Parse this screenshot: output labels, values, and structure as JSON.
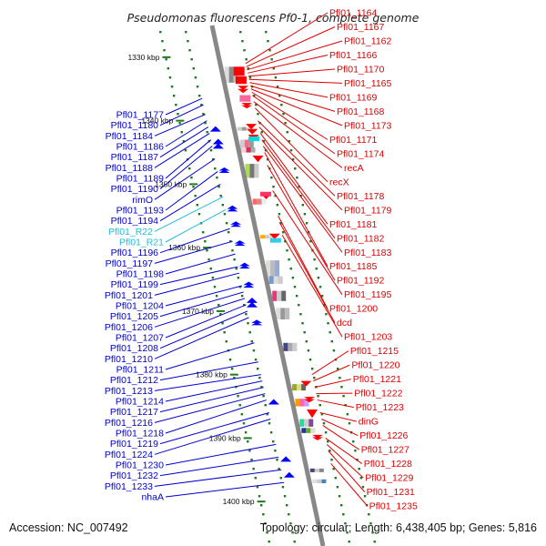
{
  "title": "Pseudomonas fluorescens Pf0-1, complete genome",
  "accession": "Accession: NC_007492",
  "topology": "Topology: circular; Length: 6,438,405 bp; Genes: 5,816",
  "colors": {
    "left_label": "#0000cc",
    "right_label": "#dd0000",
    "rna_label": "#22bbdd",
    "backbone": "#888888",
    "tick": "#1a7a1a"
  },
  "scale_marks": [
    {
      "label": "1330 kbp",
      "kbp": 1330
    },
    {
      "label": "1340 kbp",
      "kbp": 1340
    },
    {
      "label": "1350 kbp",
      "kbp": 1350
    },
    {
      "label": "1360 kbp",
      "kbp": 1360
    },
    {
      "label": "1370 kbp",
      "kbp": 1370
    },
    {
      "label": "1380 kbp",
      "kbp": 1380
    },
    {
      "label": "1390 kbp",
      "kbp": 1390
    },
    {
      "label": "1400 kbp",
      "kbp": 1400
    }
  ],
  "left_labels": [
    {
      "name": "Pfl01_1177",
      "kbp": 1336.5
    },
    {
      "name": "Pfl01_1180",
      "kbp": 1337.5
    },
    {
      "name": "Pfl01_1184",
      "kbp": 1339
    },
    {
      "name": "Pfl01_1186",
      "kbp": 1340
    },
    {
      "name": "Pfl01_1187",
      "kbp": 1341
    },
    {
      "name": "Pfl01_1188",
      "kbp": 1342
    },
    {
      "name": "Pfl01_1189",
      "kbp": 1343
    },
    {
      "name": "Pfl01_1190",
      "kbp": 1344
    },
    {
      "name": "rimO",
      "kbp": 1346
    },
    {
      "name": "Pfl01_1193",
      "kbp": 1348
    },
    {
      "name": "Pfl01_1194",
      "kbp": 1350
    },
    {
      "name": "Pfl01_R22",
      "kbp": 1352,
      "rna": true
    },
    {
      "name": "Pfl01_R21",
      "kbp": 1354,
      "rna": true
    },
    {
      "name": "Pfl01_1196",
      "kbp": 1357
    },
    {
      "name": "Pfl01_1197",
      "kbp": 1359
    },
    {
      "name": "Pfl01_1198",
      "kbp": 1361
    },
    {
      "name": "Pfl01_1199",
      "kbp": 1363
    },
    {
      "name": "Pfl01_1201",
      "kbp": 1364
    },
    {
      "name": "Pfl01_1204",
      "kbp": 1366
    },
    {
      "name": "Pfl01_1205",
      "kbp": 1367
    },
    {
      "name": "Pfl01_1206",
      "kbp": 1368
    },
    {
      "name": "Pfl01_1207",
      "kbp": 1369
    },
    {
      "name": "Pfl01_1208",
      "kbp": 1370
    },
    {
      "name": "Pfl01_1210",
      "kbp": 1371
    },
    {
      "name": "Pfl01_1211",
      "kbp": 1375
    },
    {
      "name": "Pfl01_1212",
      "kbp": 1378
    },
    {
      "name": "Pfl01_1213",
      "kbp": 1380
    },
    {
      "name": "Pfl01_1214",
      "kbp": 1381
    },
    {
      "name": "Pfl01_1217",
      "kbp": 1382
    },
    {
      "name": "Pfl01_1216",
      "kbp": 1383
    },
    {
      "name": "Pfl01_1218",
      "kbp": 1384
    },
    {
      "name": "Pfl01_1219",
      "kbp": 1386
    },
    {
      "name": "Pfl01_1224",
      "kbp": 1387
    },
    {
      "name": "Pfl01_1230",
      "kbp": 1391
    },
    {
      "name": "Pfl01_1232",
      "kbp": 1393
    },
    {
      "name": "Pfl01_1233",
      "kbp": 1395
    },
    {
      "name": "nhaA",
      "kbp": 1397
    }
  ],
  "right_labels": [
    {
      "name": "Pfl01_1164",
      "kbp": 1331
    },
    {
      "name": "Pfl01_1167",
      "kbp": 1331.5
    },
    {
      "name": "Pfl01_1162",
      "kbp": 1332
    },
    {
      "name": "Pfl01_1166",
      "kbp": 1332.5
    },
    {
      "name": "Pfl01_1170",
      "kbp": 1333
    },
    {
      "name": "Pfl01_1165",
      "kbp": 1333.5
    },
    {
      "name": "Pfl01_1169",
      "kbp": 1334
    },
    {
      "name": "Pfl01_1168",
      "kbp": 1334.5
    },
    {
      "name": "Pfl01_1173",
      "kbp": 1335
    },
    {
      "name": "Pfl01_1171",
      "kbp": 1335.5
    },
    {
      "name": "Pfl01_1174",
      "kbp": 1336
    },
    {
      "name": "recA",
      "kbp": 1337
    },
    {
      "name": "recX",
      "kbp": 1338
    },
    {
      "name": "Pfl01_1178",
      "kbp": 1340
    },
    {
      "name": "Pfl01_1179",
      "kbp": 1341
    },
    {
      "name": "Pfl01_1181",
      "kbp": 1342
    },
    {
      "name": "Pfl01_1182",
      "kbp": 1343
    },
    {
      "name": "Pfl01_1183",
      "kbp": 1344
    },
    {
      "name": "Pfl01_1185",
      "kbp": 1345
    },
    {
      "name": "Pfl01_1192",
      "kbp": 1347
    },
    {
      "name": "Pfl01_1195",
      "kbp": 1351
    },
    {
      "name": "Pfl01_1200",
      "kbp": 1355
    },
    {
      "name": "dcd",
      "kbp": 1356
    },
    {
      "name": "Pfl01_1203",
      "kbp": 1358
    },
    {
      "name": "Pfl01_1215",
      "kbp": 1380
    },
    {
      "name": "Pfl01_1220",
      "kbp": 1381
    },
    {
      "name": "Pfl01_1221",
      "kbp": 1382
    },
    {
      "name": "Pfl01_1222",
      "kbp": 1383
    },
    {
      "name": "Pfl01_1223",
      "kbp": 1384
    },
    {
      "name": "dinG",
      "kbp": 1386
    },
    {
      "name": "Pfl01_1226",
      "kbp": 1387
    },
    {
      "name": "Pfl01_1227",
      "kbp": 1388
    },
    {
      "name": "Pfl01_1228",
      "kbp": 1390
    },
    {
      "name": "Pfl01_1229",
      "kbp": 1391
    },
    {
      "name": "Pfl01_1231",
      "kbp": 1392
    },
    {
      "name": "Pfl01_1235",
      "kbp": 1394
    }
  ],
  "forward_features": [
    {
      "kbp": 1331.5,
      "len": 1.4,
      "color": "#ff0000",
      "shape": "block"
    },
    {
      "kbp": 1333,
      "len": 1.2,
      "color": "#ff0000",
      "shape": "block"
    },
    {
      "kbp": 1334.5,
      "len": 1.0,
      "color": "#ff0000",
      "shape": "arrows"
    },
    {
      "kbp": 1336,
      "len": 0.6,
      "color": "#ff0000",
      "shape": "arrows"
    },
    {
      "kbp": 1337.2,
      "len": 0.6,
      "color": "#ff0000",
      "shape": "arrows"
    },
    {
      "kbp": 1340.5,
      "len": 0.3,
      "color": "#ff0000",
      "shape": "arrow"
    },
    {
      "kbp": 1341.3,
      "len": 0.3,
      "color": "#ff0000",
      "shape": "arrow"
    },
    {
      "kbp": 1342.2,
      "len": 0.3,
      "color": "#ff0000",
      "shape": "arrow"
    },
    {
      "kbp": 1345.5,
      "len": 0.9,
      "color": "#ff0000",
      "shape": "arrow"
    },
    {
      "kbp": 1351.5,
      "len": 0.5,
      "color": "#ff0000",
      "shape": "arrow"
    },
    {
      "kbp": 1357.8,
      "len": 0.4,
      "color": "#ff0000",
      "shape": "arrow"
    },
    {
      "kbp": 1381,
      "len": 0.3,
      "color": "#ff0000",
      "shape": "arrow"
    },
    {
      "kbp": 1383.5,
      "len": 0.6,
      "color": "#ff0000",
      "shape": "arrows"
    },
    {
      "kbp": 1385.5,
      "len": 1.2,
      "color": "#ff0000",
      "shape": "arrow"
    },
    {
      "kbp": 1389.5,
      "len": 0.5,
      "color": "#ff0000",
      "shape": "arrows"
    },
    {
      "kbp": 1336,
      "len": 1.0,
      "color": "#ff6699",
      "shape": "block"
    },
    {
      "kbp": 1342.5,
      "len": 0.3,
      "color": "#00dddd",
      "shape": "block"
    },
    {
      "kbp": 1351.2,
      "len": 0.3,
      "color": "#ff3366",
      "shape": "block"
    },
    {
      "kbp": 1358.5,
      "len": 0.2,
      "color": "#33ccee",
      "shape": "block"
    }
  ],
  "reverse_features": [
    {
      "kbp": 1341,
      "len": 0.3,
      "color": "#0000ff",
      "shape": "arrow"
    },
    {
      "kbp": 1343,
      "len": 1.4,
      "color": "#0000ff",
      "shape": "arrows"
    },
    {
      "kbp": 1347.5,
      "len": 0.7,
      "color": "#0000ff",
      "shape": "arrows"
    },
    {
      "kbp": 1353.5,
      "len": 0.8,
      "color": "#0000ff",
      "shape": "arrows"
    },
    {
      "kbp": 1356,
      "len": 0.6,
      "color": "#0000ff",
      "shape": "arrows"
    },
    {
      "kbp": 1359,
      "len": 0.7,
      "color": "#0000ff",
      "shape": "arrows"
    },
    {
      "kbp": 1362.5,
      "len": 0.8,
      "color": "#0000ff",
      "shape": "arrows"
    },
    {
      "kbp": 1365.5,
      "len": 0.8,
      "color": "#0000ff",
      "shape": "arrows"
    },
    {
      "kbp": 1368,
      "len": 1.4,
      "color": "#0000ff",
      "shape": "arrows"
    },
    {
      "kbp": 1371.5,
      "len": 0.6,
      "color": "#0000ff",
      "shape": "arrows"
    },
    {
      "kbp": 1384,
      "len": 0.3,
      "color": "#0000ff",
      "shape": "arrow"
    },
    {
      "kbp": 1393,
      "len": 0.4,
      "color": "#0000ff",
      "shape": "arrow"
    },
    {
      "kbp": 1395.5,
      "len": 0.3,
      "color": "#0000ff",
      "shape": "arrow"
    }
  ],
  "gc_blocks": [
    {
      "kbp": 1331.5,
      "len": 2.5,
      "colors": [
        "#dddddd",
        "#888888",
        "#bbbbbb"
      ]
    },
    {
      "kbp": 1341,
      "len": 0.4,
      "colors": [
        "#cccccc",
        "#999999",
        "#dddddd"
      ]
    },
    {
      "kbp": 1343,
      "len": 2.0,
      "colors": [
        "#cccccc",
        "#ff6688",
        "#999999"
      ]
    },
    {
      "kbp": 1344.2,
      "len": 0.8,
      "colors": [
        "#ffccdd",
        "#cc3355",
        "#aaaaaa"
      ]
    },
    {
      "kbp": 1346.8,
      "len": 2.2,
      "colors": [
        "#aadd55",
        "#777777",
        "#cccccc"
      ]
    },
    {
      "kbp": 1352.3,
      "len": 0.9,
      "colors": [
        "#ff6666",
        "#dd8888",
        "#eeeeee"
      ]
    },
    {
      "kbp": 1358,
      "len": 0.4,
      "colors": [
        "#ffaa00",
        "#cccccc",
        "#dddddd"
      ]
    },
    {
      "kbp": 1362,
      "len": 3.2,
      "colors": [
        "#dddddd",
        "#bbbbbb",
        "#99aacc"
      ]
    },
    {
      "kbp": 1364.5,
      "len": 1.2,
      "colors": [
        "#7799cc",
        "#dddddd",
        "#cccccc"
      ]
    },
    {
      "kbp": 1366.8,
      "len": 1.6,
      "colors": [
        "#ee3377",
        "#cccccc",
        "#666666"
      ]
    },
    {
      "kbp": 1369.5,
      "len": 1.8,
      "colors": [
        "#dddddd",
        "#999999",
        "#bbbbbb"
      ]
    },
    {
      "kbp": 1375,
      "len": 1.3,
      "colors": [
        "#444488",
        "#aaaaaa",
        "#cccccc"
      ]
    },
    {
      "kbp": 1381.5,
      "len": 1.0,
      "colors": [
        "#99aa22",
        "#dddd88",
        "#666666"
      ]
    },
    {
      "kbp": 1383.8,
      "len": 1.2,
      "colors": [
        "#ff9900",
        "#ff66aa",
        "#cc99ff"
      ]
    },
    {
      "kbp": 1387,
      "len": 1.2,
      "colors": [
        "#22dd99",
        "#cccccc",
        "#884499"
      ]
    },
    {
      "kbp": 1388.4,
      "len": 0.8,
      "colors": [
        "#2233aa",
        "#66aa22",
        "#dddddd"
      ]
    },
    {
      "kbp": 1394.8,
      "len": 0.5,
      "colors": [
        "#444477",
        "#cccccc",
        "#888888"
      ]
    },
    {
      "kbp": 1396.5,
      "len": 0.6,
      "colors": [
        "#ddddee",
        "#cccccc",
        "#4488bb"
      ]
    }
  ]
}
